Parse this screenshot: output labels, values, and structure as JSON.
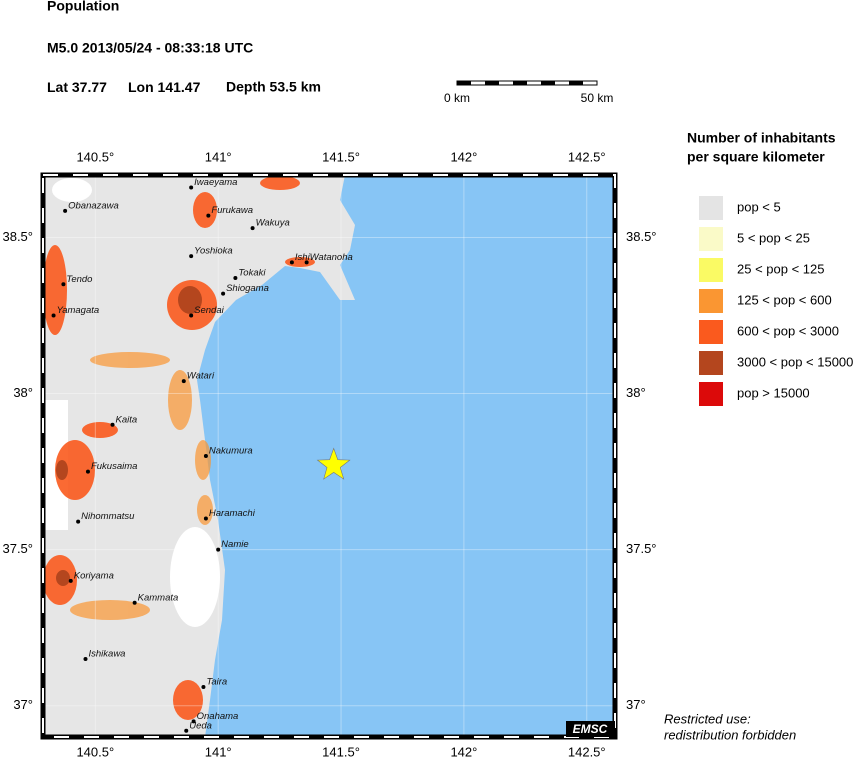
{
  "header": {
    "title": "Population",
    "event": "M5.0  2013/05/24 - 08:33:18 UTC",
    "lat": {
      "label": "Lat",
      "value": 37.77
    },
    "lon": {
      "label": "Lon",
      "value": 141.47
    },
    "depth": "Depth  53.5 km"
  },
  "scale_bar": {
    "start": "0 km",
    "end": "50 km"
  },
  "map": {
    "xlim": [
      140.287,
      142.615
    ],
    "ylim": [
      36.9,
      38.7
    ],
    "xticks": [
      {
        "value": 140.5,
        "label": "140.5°"
      },
      {
        "value": 141,
        "label": "141°"
      },
      {
        "value": 141.5,
        "label": "141.5°"
      },
      {
        "value": 142,
        "label": "142°"
      },
      {
        "value": 142.5,
        "label": "142.5°"
      }
    ],
    "yticks": [
      {
        "value": 37,
        "label": "37°"
      },
      {
        "value": 37.5,
        "label": "37.5°"
      },
      {
        "value": 38,
        "label": "38°"
      },
      {
        "value": 38.5,
        "label": "38.5°"
      }
    ],
    "epicenter_color": "#ffff00",
    "cities": [
      {
        "name": "Obanazawa",
        "lon": 140.377,
        "lat": 38.585
      },
      {
        "name": "Iwaeyama",
        "lon": 140.89,
        "lat": 38.66
      },
      {
        "name": "Furukawa",
        "lon": 140.96,
        "lat": 38.57
      },
      {
        "name": "Wakuya",
        "lon": 141.14,
        "lat": 38.53
      },
      {
        "name": "Yoshioka",
        "lon": 140.89,
        "lat": 38.44
      },
      {
        "name": "Ishi",
        "lon": 141.3,
        "lat": 38.42
      },
      {
        "name": "Watanoha",
        "lon": 141.36,
        "lat": 38.42
      },
      {
        "name": "Tokaki",
        "lon": 141.07,
        "lat": 38.37
      },
      {
        "name": "Tendo",
        "lon": 140.37,
        "lat": 38.35
      },
      {
        "name": "Shiogama",
        "lon": 141.02,
        "lat": 38.32
      },
      {
        "name": "Yamagata",
        "lon": 140.33,
        "lat": 38.25
      },
      {
        "name": "Sendai",
        "lon": 140.89,
        "lat": 38.25
      },
      {
        "name": "Watari",
        "lon": 140.86,
        "lat": 38.04
      },
      {
        "name": "Kaita",
        "lon": 140.57,
        "lat": 37.9
      },
      {
        "name": "Nakumura",
        "lon": 140.95,
        "lat": 37.8
      },
      {
        "name": "Fukusaima",
        "lon": 140.47,
        "lat": 37.75
      },
      {
        "name": "Haramachi",
        "lon": 140.95,
        "lat": 37.6
      },
      {
        "name": "Nihommatsu",
        "lon": 140.43,
        "lat": 37.59
      },
      {
        "name": "Namie",
        "lon": 141.0,
        "lat": 37.5
      },
      {
        "name": "Koriyama",
        "lon": 140.4,
        "lat": 37.4
      },
      {
        "name": "Kammata",
        "lon": 140.66,
        "lat": 37.33
      },
      {
        "name": "Ishikawa",
        "lon": 140.46,
        "lat": 37.15
      },
      {
        "name": "Taira",
        "lon": 140.94,
        "lat": 37.06
      },
      {
        "name": "Onahama",
        "lon": 140.9,
        "lat": 36.95
      },
      {
        "name": "Ueda",
        "lon": 140.87,
        "lat": 36.92
      }
    ],
    "credit": "EMSC"
  },
  "legend": {
    "title": [
      "Number of inhabitants",
      "per square kilometer"
    ],
    "items": [
      {
        "label": "pop < 5",
        "color": "#e4e4e4"
      },
      {
        "label": "5 < pop < 25",
        "color": "#fafac8"
      },
      {
        "label": "25 < pop < 125",
        "color": "#fafa64"
      },
      {
        "label": "125 < pop < 600",
        "color": "#fa9632"
      },
      {
        "label": "600 < pop < 3000",
        "color": "#fa5a1e"
      },
      {
        "label": "3000 < pop < 15000",
        "color": "#b4461e"
      },
      {
        "label": "pop > 15000",
        "color": "#dc0a0a"
      }
    ]
  },
  "notice": [
    "Restricted use:",
    "redistribution forbidden"
  ]
}
